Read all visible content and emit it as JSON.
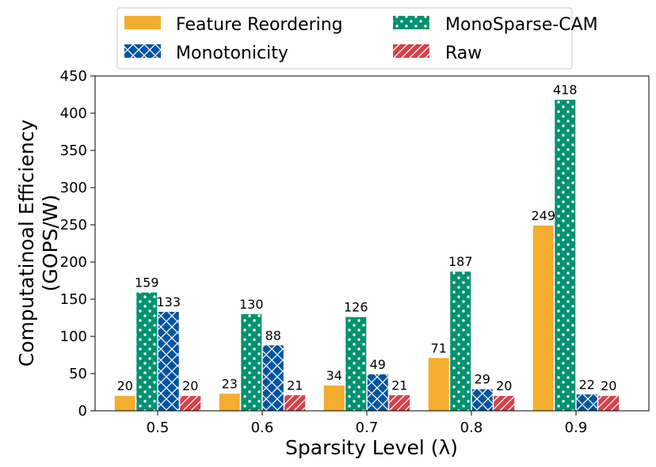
{
  "chart_data": {
    "type": "bar",
    "title": "",
    "xlabel": "Sparsity Level (λ)",
    "ylabel_lines": [
      "Computatinoal Efficiency",
      "(GOPS/W)"
    ],
    "categories": [
      "0.5",
      "0.6",
      "0.7",
      "0.8",
      "0.9"
    ],
    "ylim": [
      0,
      450
    ],
    "yticks": [
      0,
      50,
      100,
      150,
      200,
      250,
      300,
      350,
      400,
      450
    ],
    "grid": false,
    "legend_position": "top-center",
    "series": [
      {
        "name": "Feature Reordering",
        "color": "#F5AD2F",
        "pattern": "solid",
        "values": [
          20,
          23,
          34,
          71,
          249
        ]
      },
      {
        "name": "MonoSparse-CAM",
        "color": "#009270",
        "pattern": "dots",
        "values": [
          159,
          130,
          126,
          187,
          418
        ]
      },
      {
        "name": "Monotonicity",
        "color": "#00549F",
        "pattern": "crosshatch",
        "values": [
          133,
          88,
          49,
          29,
          22
        ]
      },
      {
        "name": "Raw",
        "color": "#D5424A",
        "pattern": "diagonal",
        "values": [
          20,
          21,
          21,
          20,
          20
        ]
      }
    ],
    "legend_order": [
      0,
      2,
      1,
      3
    ]
  }
}
